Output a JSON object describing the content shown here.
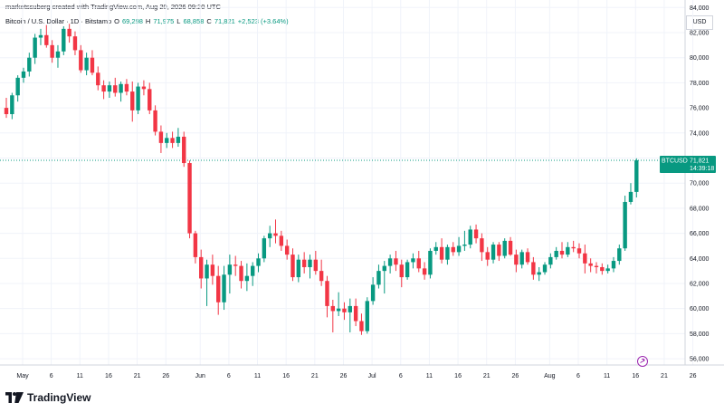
{
  "header": {
    "credit": "marketssuberg created with TradingView.com, Aug 20, 2026 09:20 UTC",
    "symbol": "Bitcoin / U.S. Dollar · 1D · Bitstamp",
    "open_label": "O",
    "open": "69,298",
    "high_label": "H",
    "high": "71,975",
    "low_label": "L",
    "low": "68,858",
    "close_label": "C",
    "close": "71,821",
    "change": "+2,523 (+3.64%)"
  },
  "currency": "USD",
  "price_tag": {
    "ticker": "BTCUSD",
    "price": "71,821",
    "countdown": "14:39:18"
  },
  "logo": {
    "text": "TradingView"
  },
  "colors": {
    "up": "#089981",
    "down": "#f23645",
    "grid": "#f0f3fa",
    "price_line": "#089981"
  },
  "chart_data": {
    "type": "candlestick",
    "symbol": "BTCUSD",
    "ylim": [
      55500,
      84600
    ],
    "y_ticks": [
      56000,
      58000,
      60000,
      62000,
      64000,
      66000,
      68000,
      70000,
      72000,
      74000,
      76000,
      78000,
      80000,
      82000,
      84000
    ],
    "y_tick_labels": [
      "56,000",
      "58,000",
      "60,000",
      "62,000",
      "64,000",
      "66,000",
      "68,000",
      "70,000",
      "72,000",
      "74,000",
      "76,000",
      "78,000",
      "80,000",
      "82,000",
      "84,000"
    ],
    "x_ticks": [
      {
        "label": "May",
        "day": 0
      },
      {
        "label": "6",
        "day": 5
      },
      {
        "label": "11",
        "day": 10
      },
      {
        "label": "16",
        "day": 15
      },
      {
        "label": "21",
        "day": 20
      },
      {
        "label": "26",
        "day": 25
      },
      {
        "label": "Jun",
        "day": 31
      },
      {
        "label": "6",
        "day": 36
      },
      {
        "label": "11",
        "day": 41
      },
      {
        "label": "16",
        "day": 46
      },
      {
        "label": "21",
        "day": 51
      },
      {
        "label": "26",
        "day": 56
      },
      {
        "label": "Jul",
        "day": 61
      },
      {
        "label": "6",
        "day": 66
      },
      {
        "label": "11",
        "day": 71
      },
      {
        "label": "16",
        "day": 76
      },
      {
        "label": "21",
        "day": 81
      },
      {
        "label": "26",
        "day": 86
      },
      {
        "label": "Aug",
        "day": 92
      },
      {
        "label": "6",
        "day": 97
      },
      {
        "label": "11",
        "day": 102
      },
      {
        "label": "16",
        "day": 107
      },
      {
        "label": "21",
        "day": 112
      },
      {
        "label": "26",
        "day": 117
      }
    ],
    "candles": [
      [
        0,
        76000,
        76800,
        75200,
        75500
      ],
      [
        1,
        75500,
        77200,
        75100,
        77000
      ],
      [
        2,
        77000,
        78600,
        76500,
        78400
      ],
      [
        3,
        78400,
        79200,
        78000,
        78900
      ],
      [
        4,
        78900,
        80400,
        78500,
        80000
      ],
      [
        5,
        80000,
        81900,
        79500,
        81600
      ],
      [
        6,
        81600,
        82300,
        81000,
        81800
      ],
      [
        7,
        81800,
        82600,
        80800,
        81000
      ],
      [
        8,
        81000,
        81400,
        79600,
        80000
      ],
      [
        9,
        80000,
        81000,
        79200,
        80500
      ],
      [
        10,
        80500,
        82500,
        80200,
        82300
      ],
      [
        11,
        82300,
        82700,
        81200,
        81700
      ],
      [
        12,
        81700,
        82100,
        80200,
        80600
      ],
      [
        13,
        80600,
        81000,
        78800,
        79000
      ],
      [
        14,
        79000,
        80400,
        78600,
        80000
      ],
      [
        15,
        80000,
        80600,
        78600,
        78800
      ],
      [
        16,
        78800,
        79300,
        77400,
        77800
      ],
      [
        17,
        77800,
        78200,
        76700,
        77300
      ],
      [
        18,
        77300,
        78100,
        76800,
        77800
      ],
      [
        19,
        77800,
        78400,
        76900,
        77200
      ],
      [
        20,
        77200,
        78100,
        76500,
        77900
      ],
      [
        21,
        77900,
        78300,
        77000,
        77300
      ],
      [
        22,
        77300,
        78100,
        74900,
        75800
      ],
      [
        23,
        75800,
        78000,
        75500,
        77700
      ],
      [
        24,
        77700,
        78200,
        77000,
        77500
      ],
      [
        25,
        77500,
        78000,
        75500,
        75800
      ],
      [
        26,
        75800,
        76200,
        73800,
        74100
      ],
      [
        27,
        74100,
        74600,
        72400,
        73200
      ],
      [
        28,
        73200,
        74000,
        72800,
        73600
      ],
      [
        29,
        73600,
        74100,
        72800,
        73200
      ],
      [
        30,
        73200,
        74400,
        72900,
        73700
      ],
      [
        31,
        73700,
        74100,
        71300,
        71600
      ],
      [
        32,
        71600,
        71800,
        65600,
        66000
      ],
      [
        33,
        66000,
        66200,
        63600,
        64100
      ],
      [
        34,
        64100,
        64700,
        61600,
        62400
      ],
      [
        35,
        62400,
        63900,
        60200,
        63500
      ],
      [
        36,
        63500,
        64300,
        61900,
        62600
      ],
      [
        37,
        62600,
        63400,
        59500,
        60500
      ],
      [
        38,
        60500,
        63400,
        59900,
        62700
      ],
      [
        39,
        62700,
        64300,
        61200,
        63500
      ],
      [
        40,
        63500,
        64200,
        62600,
        63400
      ],
      [
        41,
        63400,
        63800,
        61600,
        62200
      ],
      [
        42,
        62200,
        63600,
        61400,
        62600
      ],
      [
        43,
        62600,
        63700,
        61800,
        63400
      ],
      [
        44,
        63400,
        64400,
        62900,
        64000
      ],
      [
        45,
        64000,
        65800,
        63700,
        65600
      ],
      [
        46,
        65600,
        66600,
        64900,
        66000
      ],
      [
        47,
        66000,
        67100,
        65200,
        65800
      ],
      [
        48,
        65800,
        66200,
        64600,
        65000
      ],
      [
        49,
        65000,
        65500,
        63900,
        64300
      ],
      [
        50,
        64300,
        64800,
        62200,
        62500
      ],
      [
        51,
        62500,
        64300,
        62100,
        63900
      ],
      [
        52,
        63900,
        64500,
        62800,
        63300
      ],
      [
        53,
        63300,
        64300,
        62400,
        63900
      ],
      [
        54,
        63900,
        64600,
        62700,
        63000
      ],
      [
        55,
        63000,
        63900,
        61800,
        62200
      ],
      [
        56,
        62200,
        62600,
        59300,
        60200
      ],
      [
        57,
        60200,
        60700,
        58100,
        59800
      ],
      [
        58,
        59800,
        61300,
        59400,
        60000
      ],
      [
        59,
        60000,
        60500,
        59100,
        59700
      ],
      [
        60,
        59700,
        60800,
        58100,
        60200
      ],
      [
        61,
        60200,
        60800,
        58600,
        59000
      ],
      [
        62,
        59000,
        59600,
        57900,
        58200
      ],
      [
        63,
        58200,
        60900,
        58000,
        60600
      ],
      [
        64,
        60600,
        62500,
        60300,
        61900
      ],
      [
        65,
        61900,
        63500,
        61600,
        63000
      ],
      [
        66,
        63000,
        63800,
        61200,
        63400
      ],
      [
        67,
        63400,
        64300,
        62800,
        64000
      ],
      [
        68,
        64000,
        64600,
        63000,
        63500
      ],
      [
        69,
        63500,
        63900,
        61700,
        62500
      ],
      [
        70,
        62500,
        63900,
        62300,
        63700
      ],
      [
        71,
        63700,
        64400,
        63200,
        64000
      ],
      [
        72,
        64000,
        64600,
        62900,
        63200
      ],
      [
        73,
        63200,
        63700,
        62300,
        62700
      ],
      [
        74,
        62700,
        64800,
        62400,
        64600
      ],
      [
        75,
        64600,
        65300,
        64300,
        64900
      ],
      [
        76,
        64900,
        65600,
        63600,
        63900
      ],
      [
        77,
        63900,
        65100,
        63500,
        64900
      ],
      [
        78,
        64900,
        65300,
        64200,
        64500
      ],
      [
        79,
        64500,
        65700,
        64200,
        65000
      ],
      [
        80,
        65000,
        66200,
        64600,
        65100
      ],
      [
        81,
        65100,
        66600,
        64800,
        66300
      ],
      [
        82,
        66300,
        66700,
        65200,
        65600
      ],
      [
        83,
        65600,
        66000,
        63800,
        64500
      ],
      [
        84,
        64500,
        64900,
        63400,
        63900
      ],
      [
        85,
        63900,
        65300,
        63600,
        65100
      ],
      [
        86,
        65100,
        65300,
        63800,
        64200
      ],
      [
        87,
        64200,
        65600,
        64000,
        65400
      ],
      [
        88,
        65400,
        65700,
        64200,
        64300
      ],
      [
        89,
        64300,
        64700,
        62900,
        63500
      ],
      [
        90,
        63500,
        64700,
        63200,
        64500
      ],
      [
        91,
        64500,
        64800,
        63500,
        63700
      ],
      [
        92,
        63700,
        64100,
        62300,
        62700
      ],
      [
        93,
        62700,
        63300,
        62200,
        62900
      ],
      [
        94,
        62900,
        63700,
        62700,
        63500
      ],
      [
        95,
        63500,
        64400,
        63200,
        64100
      ],
      [
        96,
        64100,
        64900,
        63900,
        64600
      ],
      [
        97,
        64600,
        65300,
        64000,
        64300
      ],
      [
        98,
        64300,
        65300,
        64100,
        64900
      ],
      [
        99,
        64900,
        65400,
        64500,
        64800
      ],
      [
        100,
        64800,
        65200,
        64000,
        64400
      ],
      [
        101,
        64400,
        65100,
        62800,
        63600
      ],
      [
        102,
        63600,
        64000,
        62900,
        63400
      ],
      [
        103,
        63400,
        63700,
        62800,
        63300
      ],
      [
        104,
        63300,
        63600,
        62700,
        63000
      ],
      [
        105,
        63000,
        63500,
        62800,
        63200
      ],
      [
        106,
        63200,
        64100,
        62900,
        63800
      ],
      [
        107,
        63800,
        65100,
        63500,
        64800
      ],
      [
        108,
        64800,
        69000,
        64600,
        68500
      ],
      [
        109,
        68500,
        70000,
        68300,
        69300
      ],
      [
        110,
        69298,
        71975,
        68858,
        71821
      ]
    ],
    "last_price": 71821
  }
}
